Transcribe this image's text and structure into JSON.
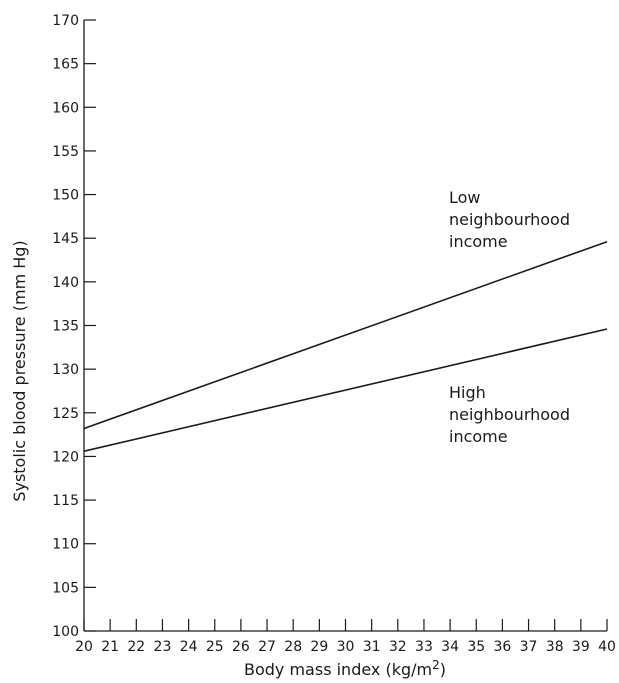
{
  "chart_data": {
    "type": "line",
    "title": "",
    "xlabel": "Body mass index (kg/m",
    "xlabel_superscript": "2",
    "xlabel_suffix": ")",
    "ylabel": "Systolic blood pressure (mm Hg)",
    "xlim": [
      20,
      40
    ],
    "ylim": [
      100,
      170
    ],
    "x_ticks": [
      20,
      21,
      22,
      23,
      24,
      25,
      26,
      27,
      28,
      29,
      30,
      31,
      32,
      33,
      34,
      35,
      36,
      37,
      38,
      39,
      40
    ],
    "y_ticks": [
      100,
      105,
      110,
      115,
      120,
      125,
      130,
      135,
      140,
      145,
      150,
      155,
      160,
      165,
      170
    ],
    "grid": false,
    "series": [
      {
        "label_lines": [
          "Low",
          "neighbourhood",
          "income"
        ],
        "x": [
          20,
          40
        ],
        "y": [
          123.2,
          144.6
        ]
      },
      {
        "label_lines": [
          "High",
          "neighbourhood",
          "income"
        ],
        "x": [
          20,
          40
        ],
        "y": [
          120.6,
          134.6
        ]
      }
    ]
  }
}
